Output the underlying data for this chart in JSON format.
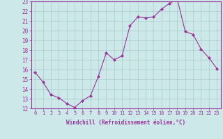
{
  "x": [
    0,
    1,
    2,
    3,
    4,
    5,
    6,
    7,
    8,
    9,
    10,
    11,
    12,
    13,
    14,
    15,
    16,
    17,
    18,
    19,
    20,
    21,
    22,
    23
  ],
  "y": [
    15.7,
    14.7,
    13.4,
    13.1,
    12.5,
    12.1,
    12.8,
    13.3,
    15.3,
    17.7,
    17.0,
    17.4,
    20.5,
    21.4,
    21.3,
    21.4,
    22.2,
    22.8,
    23.2,
    19.9,
    19.6,
    18.1,
    17.2,
    16.1
  ],
  "line_color": "#993399",
  "marker": "D",
  "marker_size": 2,
  "bg_color": "#cce8e8",
  "grid_color": "#aacccc",
  "xlabel": "Windchill (Refroidissement éolien,°C)",
  "xlim": [
    -0.5,
    23.5
  ],
  "ylim": [
    12,
    23
  ],
  "yticks": [
    12,
    13,
    14,
    15,
    16,
    17,
    18,
    19,
    20,
    21,
    22,
    23
  ],
  "xticks": [
    0,
    1,
    2,
    3,
    4,
    5,
    6,
    7,
    8,
    9,
    10,
    11,
    12,
    13,
    14,
    15,
    16,
    17,
    18,
    19,
    20,
    21,
    22,
    23
  ],
  "label_color": "#993399",
  "tick_color": "#993399",
  "axis_color": "#993399",
  "tick_fontsize": 5.0,
  "ytick_fontsize": 5.5,
  "xlabel_fontsize": 5.5
}
